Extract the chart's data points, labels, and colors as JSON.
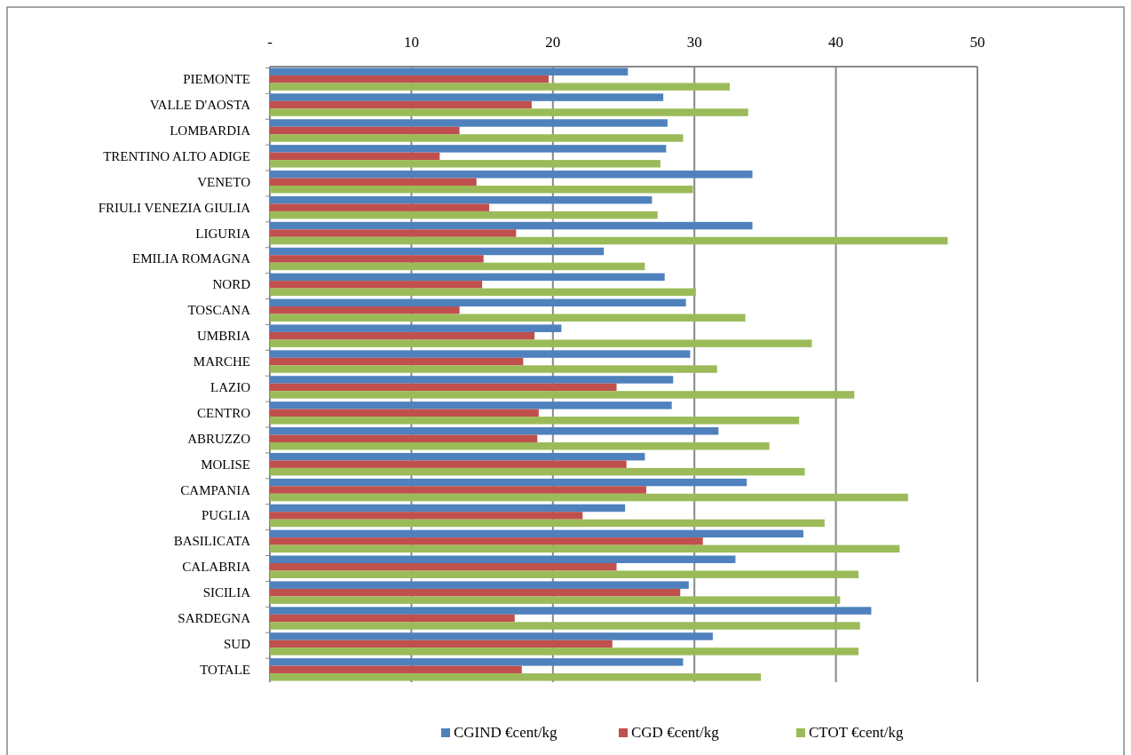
{
  "chart_data": {
    "type": "bar",
    "orientation": "horizontal",
    "categories": [
      "PIEMONTE",
      "VALLE D'AOSTA",
      "LOMBARDIA",
      "TRENTINO ALTO ADIGE",
      "VENETO",
      "FRIULI VENEZIA GIULIA",
      "LIGURIA",
      "EMILIA ROMAGNA",
      "NORD",
      "TOSCANA",
      "UMBRIA",
      "MARCHE",
      "LAZIO",
      "CENTRO",
      "ABRUZZO",
      "MOLISE",
      "CAMPANIA",
      "PUGLIA",
      "BASILICATA",
      "CALABRIA",
      "SICILIA",
      "SARDEGNA",
      "SUD",
      "TOTALE"
    ],
    "series": [
      {
        "name": "CGIND €cent/kg",
        "color": "#4f81bd",
        "values": [
          25.3,
          27.8,
          28.1,
          28.0,
          34.1,
          27.0,
          34.1,
          23.6,
          27.9,
          29.4,
          20.6,
          29.7,
          28.5,
          28.4,
          31.7,
          26.5,
          33.7,
          25.1,
          37.7,
          32.9,
          29.6,
          42.5,
          31.3,
          29.2
        ]
      },
      {
        "name": "CGD €cent/kg",
        "color": "#c0504d",
        "values": [
          19.7,
          18.5,
          13.4,
          12.0,
          14.6,
          15.5,
          17.4,
          15.1,
          15.0,
          13.4,
          18.7,
          17.9,
          24.5,
          19.0,
          18.9,
          25.2,
          26.6,
          22.1,
          30.6,
          24.5,
          29.0,
          17.3,
          24.2,
          17.8
        ]
      },
      {
        "name": "CTOT €cent/kg",
        "color": "#9bbb59",
        "values": [
          32.5,
          33.8,
          29.2,
          27.6,
          29.9,
          27.4,
          47.9,
          26.5,
          30.1,
          33.6,
          38.3,
          31.6,
          41.3,
          37.4,
          35.3,
          37.8,
          45.1,
          39.2,
          44.5,
          41.6,
          40.3,
          41.7,
          41.6,
          34.7
        ]
      }
    ],
    "xlim": [
      0,
      50
    ],
    "xticks": [
      {
        "value": 0,
        "label": "-"
      },
      10,
      20,
      30,
      40,
      50
    ],
    "grid": "x",
    "legend": "bottom"
  }
}
